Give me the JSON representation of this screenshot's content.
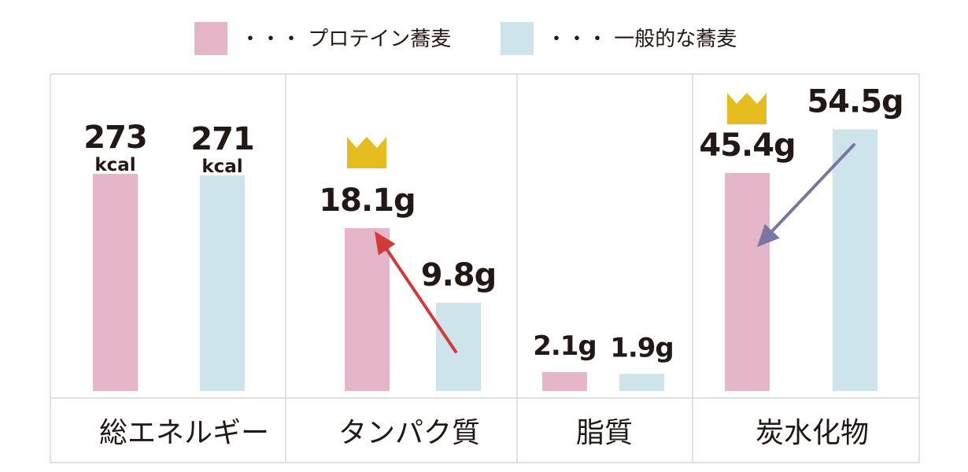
{
  "chart_data": {
    "type": "bar",
    "categories": [
      "総エネルギー",
      "タンパク質",
      "脂質",
      "炭水化物"
    ],
    "series": [
      {
        "name": "プロテイン蕎麦",
        "color": "#e5b5c9",
        "values": [
          273,
          18.1,
          2.1,
          45.4
        ],
        "labels": [
          {
            "num": "273",
            "unit": "kcal"
          },
          {
            "num": "18.1g",
            "unit": ""
          },
          {
            "num": "2.1g",
            "unit": ""
          },
          {
            "num": "45.4g",
            "unit": ""
          }
        ]
      },
      {
        "name": "一般的な蕎麦",
        "color": "#cce4ea",
        "values": [
          271,
          9.8,
          1.9,
          54.5
        ],
        "labels": [
          {
            "num": "271",
            "unit": "kcal"
          },
          {
            "num": "9.8g",
            "unit": ""
          },
          {
            "num": "1.9g",
            "unit": ""
          },
          {
            "num": "54.5g",
            "unit": ""
          }
        ]
      }
    ],
    "legend": {
      "position": "top-center",
      "dots": "・・・"
    },
    "grid": true,
    "crown_color": "#e6bd1f",
    "crowns": [
      {
        "category": 1,
        "series": 0
      },
      {
        "category": 3,
        "series": 0
      }
    ],
    "arrows": [
      {
        "category": 1,
        "color": "#d23a3a",
        "from": 9.8,
        "to": 18.1
      },
      {
        "category": 3,
        "color": "#7a75a3",
        "from": 54.5,
        "to": 45.4
      }
    ]
  }
}
